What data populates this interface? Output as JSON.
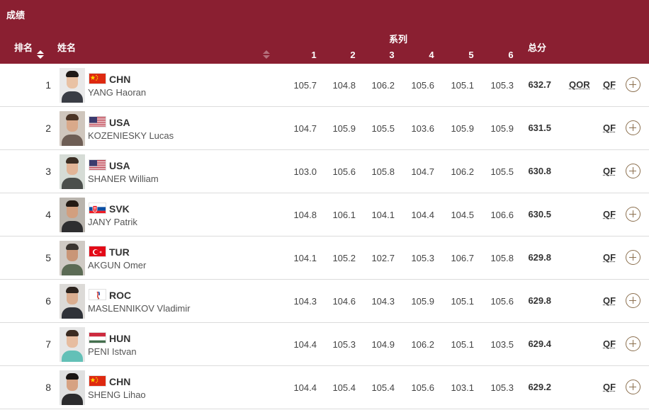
{
  "header": {
    "title": "成绩",
    "rank_label": "排名",
    "name_label": "姓名",
    "series_label": "系列",
    "series_numbers": [
      "1",
      "2",
      "3",
      "4",
      "5",
      "6"
    ],
    "total_label": "总分"
  },
  "colors": {
    "header_bg": "#8a1f31",
    "accent_brown": "#8b6f4e",
    "row_divider": "#dcdcdc"
  },
  "rows": [
    {
      "rank": "1",
      "noc": "CHN",
      "name": "YANG Haoran",
      "flag": "chn-flag-icon",
      "series": [
        "105.7",
        "104.8",
        "106.2",
        "105.6",
        "105.1",
        "105.3"
      ],
      "total": "632.7",
      "record": "QOR",
      "qualification": "QF"
    },
    {
      "rank": "2",
      "noc": "USA",
      "name": "KOZENIESKY Lucas",
      "flag": "usa-flag-icon",
      "series": [
        "104.7",
        "105.9",
        "105.5",
        "103.6",
        "105.9",
        "105.9"
      ],
      "total": "631.5",
      "record": "",
      "qualification": "QF"
    },
    {
      "rank": "3",
      "noc": "USA",
      "name": "SHANER William",
      "flag": "usa-flag-icon",
      "series": [
        "103.0",
        "105.6",
        "105.8",
        "104.7",
        "106.2",
        "105.5"
      ],
      "total": "630.8",
      "record": "",
      "qualification": "QF"
    },
    {
      "rank": "4",
      "noc": "SVK",
      "name": "JANY Patrik",
      "flag": "svk-flag-icon",
      "series": [
        "104.8",
        "106.1",
        "104.1",
        "104.4",
        "104.5",
        "106.6"
      ],
      "total": "630.5",
      "record": "",
      "qualification": "QF"
    },
    {
      "rank": "5",
      "noc": "TUR",
      "name": "AKGUN Omer",
      "flag": "tur-flag-icon",
      "series": [
        "104.1",
        "105.2",
        "102.7",
        "105.3",
        "106.7",
        "105.8"
      ],
      "total": "629.8",
      "record": "",
      "qualification": "QF"
    },
    {
      "rank": "6",
      "noc": "ROC",
      "name": "MASLENNIKOV Vladimir",
      "flag": "roc-flag-icon",
      "series": [
        "104.3",
        "104.6",
        "104.3",
        "105.9",
        "105.1",
        "105.6"
      ],
      "total": "629.8",
      "record": "",
      "qualification": "QF"
    },
    {
      "rank": "7",
      "noc": "HUN",
      "name": "PENI Istvan",
      "flag": "hun-flag-icon",
      "series": [
        "104.4",
        "105.3",
        "104.9",
        "106.2",
        "105.1",
        "103.5"
      ],
      "total": "629.4",
      "record": "",
      "qualification": "QF"
    },
    {
      "rank": "8",
      "noc": "CHN",
      "name": "SHENG Lihao",
      "flag": "chn-flag-icon",
      "series": [
        "104.4",
        "105.4",
        "105.4",
        "105.6",
        "103.1",
        "105.3"
      ],
      "total": "629.2",
      "record": "",
      "qualification": "QF"
    }
  ]
}
